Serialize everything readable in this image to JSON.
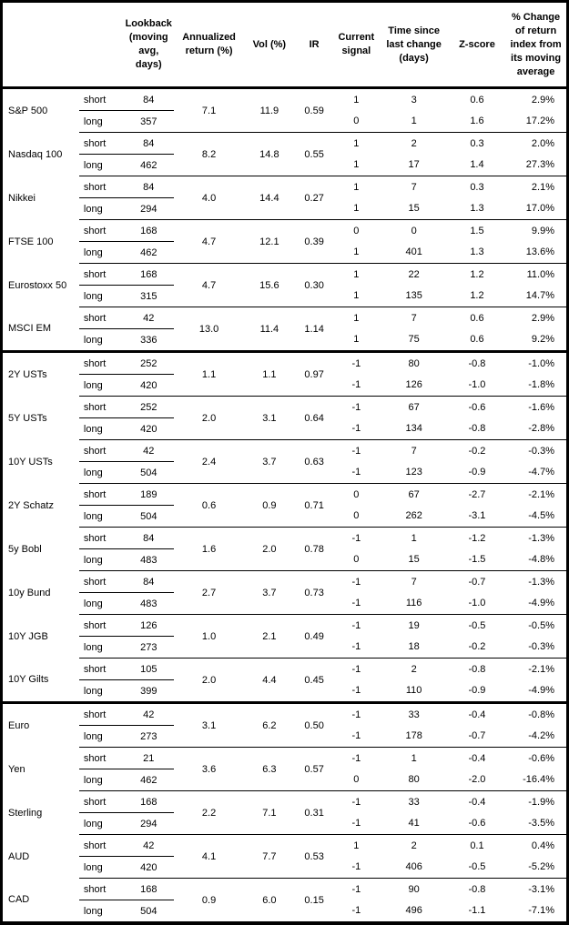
{
  "colors": {
    "text": "#000000",
    "background": "#ffffff",
    "border": "#000000"
  },
  "header": {
    "name": "",
    "horizon": "",
    "lookback": "Lookback (moving avg, days)",
    "annualized_return": "Annualized return (%)",
    "vol": "Vol (%)",
    "ir": "IR",
    "current_signal": "Current signal",
    "time_since": "Time since last change (days)",
    "z_score": "Z-score",
    "pct_change": "% Change of return index from its moving average"
  },
  "sections": [
    {
      "instruments": [
        {
          "name": "S&P 500",
          "annualized_return": "7.1",
          "vol": "11.9",
          "ir": "0.59",
          "short": {
            "label": "short",
            "lookback": "84",
            "signal": "1",
            "days": "3",
            "z": "0.6",
            "pct": "2.9%"
          },
          "long": {
            "label": "long",
            "lookback": "357",
            "signal": "0",
            "days": "1",
            "z": "1.6",
            "pct": "17.2%"
          }
        },
        {
          "name": "Nasdaq 100",
          "annualized_return": "8.2",
          "vol": "14.8",
          "ir": "0.55",
          "short": {
            "label": "short",
            "lookback": "84",
            "signal": "1",
            "days": "2",
            "z": "0.3",
            "pct": "2.0%"
          },
          "long": {
            "label": "long",
            "lookback": "462",
            "signal": "1",
            "days": "17",
            "z": "1.4",
            "pct": "27.3%"
          }
        },
        {
          "name": "Nikkei",
          "annualized_return": "4.0",
          "vol": "14.4",
          "ir": "0.27",
          "short": {
            "label": "short",
            "lookback": "84",
            "signal": "1",
            "days": "7",
            "z": "0.3",
            "pct": "2.1%"
          },
          "long": {
            "label": "long",
            "lookback": "294",
            "signal": "1",
            "days": "15",
            "z": "1.3",
            "pct": "17.0%"
          }
        },
        {
          "name": "FTSE 100",
          "annualized_return": "4.7",
          "vol": "12.1",
          "ir": "0.39",
          "short": {
            "label": "short",
            "lookback": "168",
            "signal": "0",
            "days": "0",
            "z": "1.5",
            "pct": "9.9%"
          },
          "long": {
            "label": "long",
            "lookback": "462",
            "signal": "1",
            "days": "401",
            "z": "1.3",
            "pct": "13.6%"
          }
        },
        {
          "name": "Eurostoxx 50",
          "annualized_return": "4.7",
          "vol": "15.6",
          "ir": "0.30",
          "short": {
            "label": "short",
            "lookback": "168",
            "signal": "1",
            "days": "22",
            "z": "1.2",
            "pct": "11.0%"
          },
          "long": {
            "label": "long",
            "lookback": "315",
            "signal": "1",
            "days": "135",
            "z": "1.2",
            "pct": "14.7%"
          }
        },
        {
          "name": "MSCI EM",
          "annualized_return": "13.0",
          "vol": "11.4",
          "ir": "1.14",
          "short": {
            "label": "short",
            "lookback": "42",
            "signal": "1",
            "days": "7",
            "z": "0.6",
            "pct": "2.9%"
          },
          "long": {
            "label": "long",
            "lookback": "336",
            "signal": "1",
            "days": "75",
            "z": "0.6",
            "pct": "9.2%"
          }
        }
      ]
    },
    {
      "instruments": [
        {
          "name": "2Y USTs",
          "annualized_return": "1.1",
          "vol": "1.1",
          "ir": "0.97",
          "short": {
            "label": "short",
            "lookback": "252",
            "signal": "-1",
            "days": "80",
            "z": "-0.8",
            "pct": "-1.0%"
          },
          "long": {
            "label": "long",
            "lookback": "420",
            "signal": "-1",
            "days": "126",
            "z": "-1.0",
            "pct": "-1.8%"
          }
        },
        {
          "name": "5Y USTs",
          "annualized_return": "2.0",
          "vol": "3.1",
          "ir": "0.64",
          "short": {
            "label": "short",
            "lookback": "252",
            "signal": "-1",
            "days": "67",
            "z": "-0.6",
            "pct": "-1.6%"
          },
          "long": {
            "label": "long",
            "lookback": "420",
            "signal": "-1",
            "days": "134",
            "z": "-0.8",
            "pct": "-2.8%"
          }
        },
        {
          "name": "10Y USTs",
          "annualized_return": "2.4",
          "vol": "3.7",
          "ir": "0.63",
          "short": {
            "label": "short",
            "lookback": "42",
            "signal": "-1",
            "days": "7",
            "z": "-0.2",
            "pct": "-0.3%"
          },
          "long": {
            "label": "long",
            "lookback": "504",
            "signal": "-1",
            "days": "123",
            "z": "-0.9",
            "pct": "-4.7%"
          }
        },
        {
          "name": "2Y Schatz",
          "annualized_return": "0.6",
          "vol": "0.9",
          "ir": "0.71",
          "short": {
            "label": "short",
            "lookback": "189",
            "signal": "0",
            "days": "67",
            "z": "-2.7",
            "pct": "-2.1%"
          },
          "long": {
            "label": "long",
            "lookback": "504",
            "signal": "0",
            "days": "262",
            "z": "-3.1",
            "pct": "-4.5%"
          }
        },
        {
          "name": "5y Bobl",
          "annualized_return": "1.6",
          "vol": "2.0",
          "ir": "0.78",
          "short": {
            "label": "short",
            "lookback": "84",
            "signal": "-1",
            "days": "1",
            "z": "-1.2",
            "pct": "-1.3%"
          },
          "long": {
            "label": "long",
            "lookback": "483",
            "signal": "0",
            "days": "15",
            "z": "-1.5",
            "pct": "-4.8%"
          }
        },
        {
          "name": "10y Bund",
          "annualized_return": "2.7",
          "vol": "3.7",
          "ir": "0.73",
          "short": {
            "label": "short",
            "lookback": "84",
            "signal": "-1",
            "days": "7",
            "z": "-0.7",
            "pct": "-1.3%"
          },
          "long": {
            "label": "long",
            "lookback": "483",
            "signal": "-1",
            "days": "116",
            "z": "-1.0",
            "pct": "-4.9%"
          }
        },
        {
          "name": "10Y JGB",
          "annualized_return": "1.0",
          "vol": "2.1",
          "ir": "0.49",
          "short": {
            "label": "short",
            "lookback": "126",
            "signal": "-1",
            "days": "19",
            "z": "-0.5",
            "pct": "-0.5%"
          },
          "long": {
            "label": "long",
            "lookback": "273",
            "signal": "-1",
            "days": "18",
            "z": "-0.2",
            "pct": "-0.3%"
          }
        },
        {
          "name": "10Y Gilts",
          "annualized_return": "2.0",
          "vol": "4.4",
          "ir": "0.45",
          "short": {
            "label": "short",
            "lookback": "105",
            "signal": "-1",
            "days": "2",
            "z": "-0.8",
            "pct": "-2.1%"
          },
          "long": {
            "label": "long",
            "lookback": "399",
            "signal": "-1",
            "days": "110",
            "z": "-0.9",
            "pct": "-4.9%"
          }
        }
      ]
    },
    {
      "instruments": [
        {
          "name": "Euro",
          "annualized_return": "3.1",
          "vol": "6.2",
          "ir": "0.50",
          "short": {
            "label": "short",
            "lookback": "42",
            "signal": "-1",
            "days": "33",
            "z": "-0.4",
            "pct": "-0.8%"
          },
          "long": {
            "label": "long",
            "lookback": "273",
            "signal": "-1",
            "days": "178",
            "z": "-0.7",
            "pct": "-4.2%"
          }
        },
        {
          "name": "Yen",
          "annualized_return": "3.6",
          "vol": "6.3",
          "ir": "0.57",
          "short": {
            "label": "short",
            "lookback": "21",
            "signal": "-1",
            "days": "1",
            "z": "-0.4",
            "pct": "-0.6%"
          },
          "long": {
            "label": "long",
            "lookback": "462",
            "signal": "0",
            "days": "80",
            "z": "-2.0",
            "pct": "-16.4%"
          }
        },
        {
          "name": "Sterling",
          "annualized_return": "2.2",
          "vol": "7.1",
          "ir": "0.31",
          "short": {
            "label": "short",
            "lookback": "168",
            "signal": "-1",
            "days": "33",
            "z": "-0.4",
            "pct": "-1.9%"
          },
          "long": {
            "label": "long",
            "lookback": "294",
            "signal": "-1",
            "days": "41",
            "z": "-0.6",
            "pct": "-3.5%"
          }
        },
        {
          "name": "AUD",
          "annualized_return": "4.1",
          "vol": "7.7",
          "ir": "0.53",
          "short": {
            "label": "short",
            "lookback": "42",
            "signal": "1",
            "days": "2",
            "z": "0.1",
            "pct": "0.4%"
          },
          "long": {
            "label": "long",
            "lookback": "420",
            "signal": "-1",
            "days": "406",
            "z": "-0.5",
            "pct": "-5.2%"
          }
        },
        {
          "name": "CAD",
          "annualized_return": "0.9",
          "vol": "6.0",
          "ir": "0.15",
          "short": {
            "label": "short",
            "lookback": "168",
            "signal": "-1",
            "days": "90",
            "z": "-0.8",
            "pct": "-3.1%"
          },
          "long": {
            "label": "long",
            "lookback": "504",
            "signal": "-1",
            "days": "496",
            "z": "-1.1",
            "pct": "-7.1%"
          }
        }
      ]
    }
  ]
}
